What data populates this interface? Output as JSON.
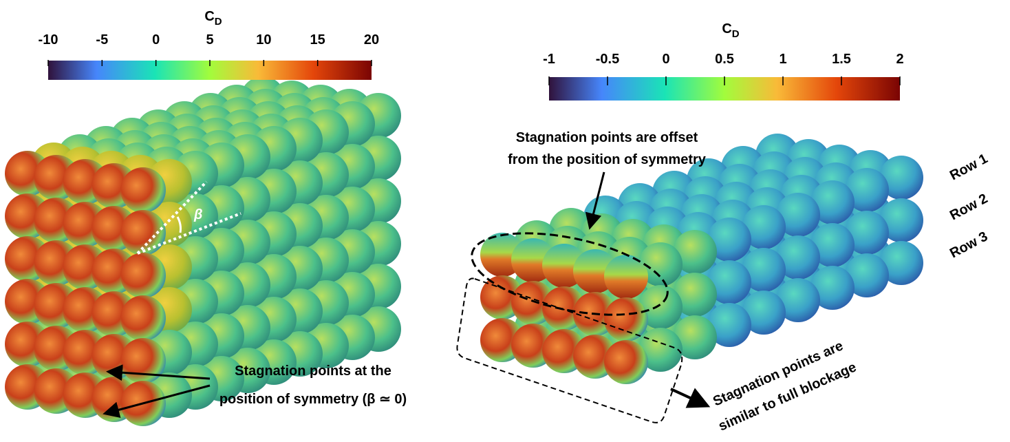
{
  "left_panel": {
    "colorbar": {
      "label": "C",
      "subscript": "D",
      "lim": [
        -10,
        20
      ],
      "ticks": [
        -10,
        -5,
        0,
        5,
        10,
        15,
        20
      ]
    },
    "angle_label": "β",
    "annotation": [
      "Stagnation points at the",
      "position of symmetry (β ≃ 0)"
    ]
  },
  "right_panel": {
    "colorbar": {
      "label": "C",
      "subscript": "D",
      "lim": [
        -1,
        2
      ],
      "ticks": [
        -1,
        -0.5,
        0,
        0.5,
        1,
        1.5,
        2
      ]
    },
    "annotation_top": [
      "Stagnation points are offset",
      "from the position of symmetry"
    ],
    "rows": [
      "Row 1",
      "Row 2",
      "Row 3"
    ],
    "annotation_bottom": [
      "Stagnation points are",
      "similar to full blockage"
    ]
  }
}
